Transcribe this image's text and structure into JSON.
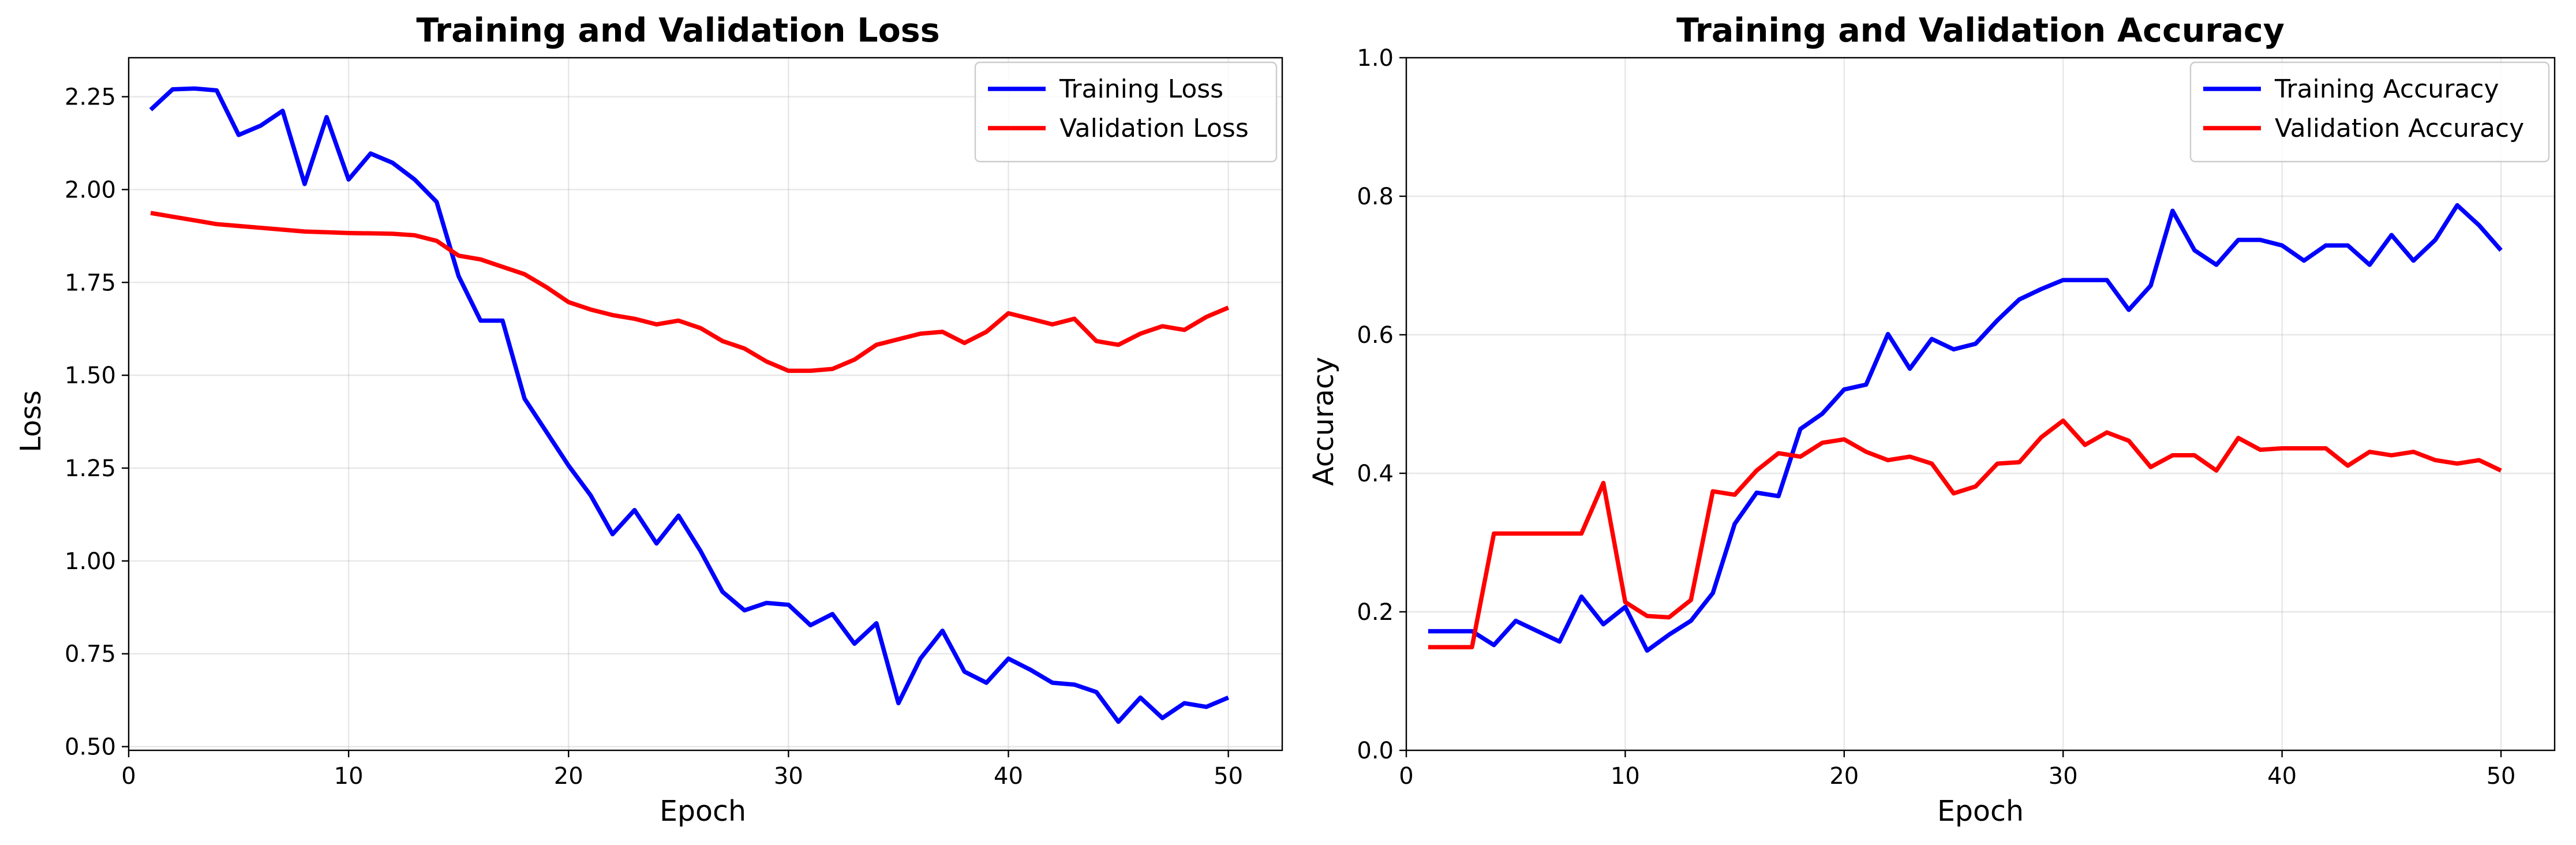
{
  "colors": {
    "training": "#0000ff",
    "validation": "#ff0000"
  },
  "chart_data": [
    {
      "type": "line",
      "title": "Training and Validation Loss",
      "xlabel": "Epoch",
      "ylabel": "Loss",
      "xlim": [
        0,
        52.45
      ],
      "ylim": [
        0.49,
        2.355
      ],
      "xticks": [
        0,
        10,
        20,
        30,
        40,
        50
      ],
      "xtick_labels": [
        "0",
        "10",
        "20",
        "30",
        "40",
        "50"
      ],
      "yticks": [
        0.5,
        0.75,
        1.0,
        1.25,
        1.5,
        1.75,
        2.0,
        2.25
      ],
      "ytick_labels": [
        "0.50",
        "0.75",
        "1.00",
        "1.25",
        "1.50",
        "1.75",
        "2.00",
        "2.25"
      ],
      "grid": true,
      "legend_position": "top-right",
      "x": [
        1,
        2,
        3,
        4,
        5,
        6,
        7,
        8,
        9,
        10,
        11,
        12,
        13,
        14,
        15,
        16,
        17,
        18,
        19,
        20,
        21,
        22,
        23,
        24,
        25,
        26,
        27,
        28,
        29,
        30,
        31,
        32,
        33,
        34,
        35,
        36,
        37,
        38,
        39,
        40,
        41,
        42,
        43,
        44,
        45,
        46,
        47,
        48,
        49,
        50
      ],
      "series": [
        {
          "name": "Training Loss",
          "color": "#0000ff",
          "values": [
            2.215,
            2.27,
            2.272,
            2.267,
            2.147,
            2.172,
            2.212,
            2.015,
            2.195,
            2.027,
            2.097,
            2.072,
            2.027,
            1.967,
            1.767,
            1.647,
            1.647,
            1.437,
            1.347,
            1.257,
            1.177,
            1.072,
            1.137,
            1.047,
            1.122,
            1.027,
            0.917,
            0.867,
            0.887,
            0.882,
            0.827,
            0.857,
            0.777,
            0.832,
            0.617,
            0.737,
            0.812,
            0.702,
            0.672,
            0.737,
            0.707,
            0.672,
            0.667,
            0.647,
            0.567,
            0.632,
            0.577,
            0.617,
            0.607,
            0.632
          ]
        },
        {
          "name": "Validation Loss",
          "color": "#ff0000",
          "values": [
            1.937,
            1.927,
            1.917,
            1.907,
            1.902,
            1.897,
            1.892,
            1.887,
            1.885,
            1.883,
            1.882,
            1.881,
            1.877,
            1.862,
            1.822,
            1.812,
            1.792,
            1.772,
            1.737,
            1.697,
            1.677,
            1.662,
            1.652,
            1.637,
            1.647,
            1.627,
            1.592,
            1.572,
            1.537,
            1.512,
            1.512,
            1.517,
            1.542,
            1.582,
            1.597,
            1.612,
            1.617,
            1.587,
            1.617,
            1.667,
            1.652,
            1.637,
            1.652,
            1.592,
            1.582,
            1.612,
            1.632,
            1.622,
            1.657,
            1.682
          ]
        }
      ]
    },
    {
      "type": "line",
      "title": "Training and Validation Accuracy",
      "xlabel": "Epoch",
      "ylabel": "Accuracy",
      "xlim": [
        0,
        52.45
      ],
      "ylim": [
        0.0,
        1.0
      ],
      "xticks": [
        0,
        10,
        20,
        30,
        40,
        50
      ],
      "xtick_labels": [
        "0",
        "10",
        "20",
        "30",
        "40",
        "50"
      ],
      "yticks": [
        0.0,
        0.2,
        0.4,
        0.6,
        0.8,
        1.0
      ],
      "ytick_labels": [
        "0.0",
        "0.2",
        "0.4",
        "0.6",
        "0.8",
        "1.0"
      ],
      "grid": true,
      "legend_position": "top-right",
      "x": [
        1,
        2,
        3,
        4,
        5,
        6,
        7,
        8,
        9,
        10,
        11,
        12,
        13,
        14,
        15,
        16,
        17,
        18,
        19,
        20,
        21,
        22,
        23,
        24,
        25,
        26,
        27,
        28,
        29,
        30,
        31,
        32,
        33,
        34,
        35,
        36,
        37,
        38,
        39,
        40,
        41,
        42,
        43,
        44,
        45,
        46,
        47,
        48,
        49,
        50
      ],
      "series": [
        {
          "name": "Training Accuracy",
          "color": "#0000ff",
          "values": [
            0.172,
            0.172,
            0.172,
            0.152,
            0.187,
            0.172,
            0.157,
            0.222,
            0.182,
            0.207,
            0.144,
            0.167,
            0.187,
            0.227,
            0.327,
            0.372,
            0.367,
            0.464,
            0.486,
            0.521,
            0.528,
            0.601,
            0.551,
            0.594,
            0.579,
            0.587,
            0.621,
            0.651,
            0.666,
            0.679,
            0.679,
            0.679,
            0.636,
            0.671,
            0.779,
            0.722,
            0.701,
            0.737,
            0.737,
            0.729,
            0.707,
            0.729,
            0.729,
            0.701,
            0.744,
            0.707,
            0.737,
            0.787,
            0.758,
            0.722
          ]
        },
        {
          "name": "Validation Accuracy",
          "color": "#ff0000",
          "values": [
            0.149,
            0.149,
            0.149,
            0.313,
            0.313,
            0.313,
            0.313,
            0.313,
            0.386,
            0.214,
            0.194,
            0.192,
            0.217,
            0.374,
            0.369,
            0.404,
            0.429,
            0.424,
            0.444,
            0.449,
            0.431,
            0.419,
            0.424,
            0.414,
            0.371,
            0.381,
            0.414,
            0.416,
            0.452,
            0.476,
            0.441,
            0.459,
            0.447,
            0.409,
            0.426,
            0.426,
            0.404,
            0.451,
            0.434,
            0.436,
            0.436,
            0.436,
            0.411,
            0.431,
            0.426,
            0.431,
            0.419,
            0.414,
            0.419,
            0.404
          ]
        }
      ]
    }
  ]
}
